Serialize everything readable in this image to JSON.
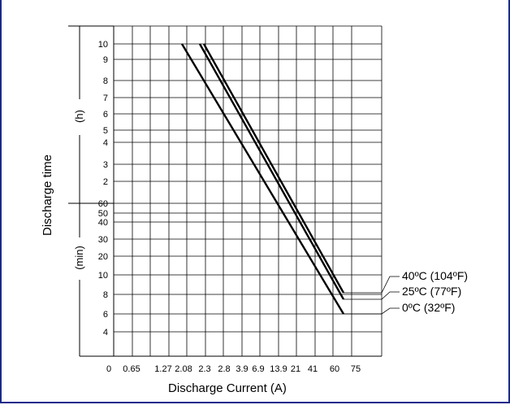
{
  "frame": {
    "border_color": "#1a2a8a"
  },
  "chart_data": {
    "type": "line",
    "xlabel": "Discharge Current (A)",
    "ylabel": "Discharge time",
    "x_ticks": [
      "0",
      "0.65",
      "1.27",
      "2.08",
      "2.3",
      "2.8",
      "3.9",
      "6.9",
      "13.9",
      "21",
      "41",
      "60",
      "75"
    ],
    "y_ticks_hours": [
      "10",
      "9",
      "8",
      "7",
      "6",
      "5",
      "4",
      "3",
      "2"
    ],
    "y_ticks_minutes": [
      "60",
      "50",
      "40",
      "30",
      "20",
      "10",
      "8",
      "6",
      "4"
    ],
    "y_unit_hours": "(h)",
    "y_unit_minutes": "(min)",
    "series": [
      {
        "name": "40ºC (104ºF)",
        "points": [
          {
            "x": "2.3",
            "y": "10 h"
          },
          {
            "x": "60",
            "y": "8 min"
          }
        ]
      },
      {
        "name": "25ºC (77ºF)",
        "points": [
          {
            "x": "2.08",
            "y": "10 h"
          },
          {
            "x": "60",
            "y": "7.5 min"
          }
        ]
      },
      {
        "name": "0ºC (32ºF)",
        "points": [
          {
            "x": "1.27",
            "y": "10 h"
          },
          {
            "x": "60",
            "y": "6 min"
          }
        ]
      }
    ]
  }
}
